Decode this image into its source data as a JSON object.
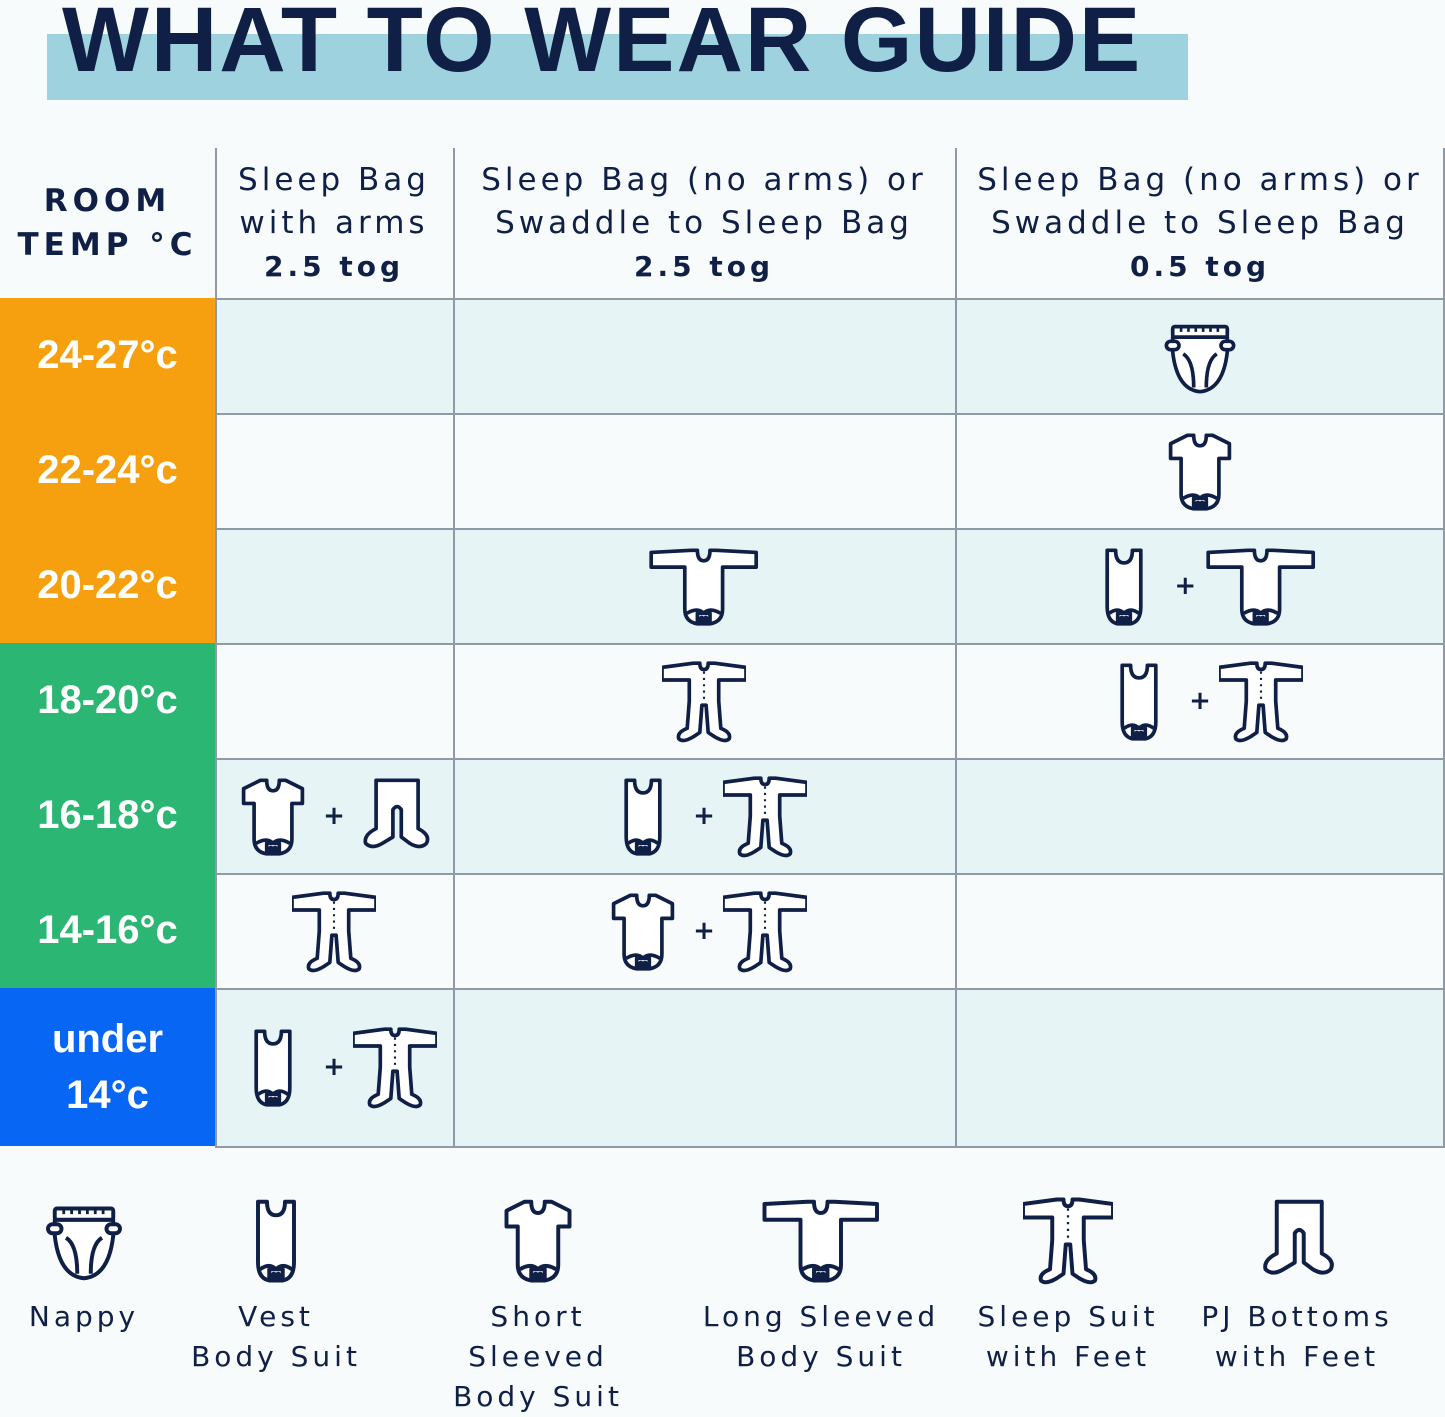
{
  "title": "WHAT TO WEAR GUIDE",
  "colors": {
    "navy": "#0f1f45",
    "orange": "#f7a00f",
    "green": "#2bb673",
    "blue": "#0866f5",
    "band": "#9ed2de",
    "row_tint": "#e6f4f5"
  },
  "header": {
    "room_line1": "ROOM",
    "room_line2": "TEMP °C",
    "columns": [
      {
        "line1": "Sleep Bag",
        "line2": "with arms",
        "tog": "2.5 tog"
      },
      {
        "line1": "Sleep Bag (no arms) or",
        "line2": "Swaddle to Sleep Bag",
        "tog": "2.5 tog"
      },
      {
        "line1": "Sleep Bag (no arms) or",
        "line2": "Swaddle to Sleep Bag",
        "tog": "0.5 tog"
      }
    ]
  },
  "rows": [
    {
      "label": "24-27°c",
      "color": "orange",
      "cells": [
        [],
        [],
        [
          "nappy"
        ]
      ]
    },
    {
      "label": "22-24°c",
      "color": "orange",
      "cells": [
        [],
        [],
        [
          "short-sleeve"
        ]
      ]
    },
    {
      "label": "20-22°c",
      "color": "orange",
      "cells": [
        [],
        [
          "long-sleeve"
        ],
        [
          "vest",
          "long-sleeve"
        ]
      ]
    },
    {
      "label": "18-20°c",
      "color": "green",
      "cells": [
        [],
        [
          "sleepsuit"
        ],
        [
          "vest",
          "sleepsuit"
        ]
      ]
    },
    {
      "label": "16-18°c",
      "color": "green",
      "cells": [
        [
          "short-sleeve",
          "pj-bottoms"
        ],
        [
          "vest",
          "sleepsuit"
        ],
        []
      ]
    },
    {
      "label": "14-16°c",
      "color": "green",
      "cells": [
        [
          "sleepsuit"
        ],
        [
          "short-sleeve",
          "sleepsuit"
        ],
        []
      ]
    },
    {
      "label": "under 14°c",
      "color": "blue",
      "cells": [
        [
          "vest",
          "sleepsuit"
        ],
        [],
        []
      ]
    }
  ],
  "plus": "+",
  "legend": [
    {
      "icon": "nappy",
      "line1": "Nappy",
      "line2": ""
    },
    {
      "icon": "vest",
      "line1": "Vest",
      "line2": "Body Suit"
    },
    {
      "icon": "short-sleeve",
      "line1": "Short Sleeved",
      "line2": "Body Suit"
    },
    {
      "icon": "long-sleeve",
      "line1": "Long Sleeved",
      "line2": "Body Suit"
    },
    {
      "icon": "sleepsuit",
      "line1": "Sleep Suit",
      "line2": "with Feet"
    },
    {
      "icon": "pj-bottoms",
      "line1": "PJ Bottoms",
      "line2": "with Feet"
    }
  ]
}
